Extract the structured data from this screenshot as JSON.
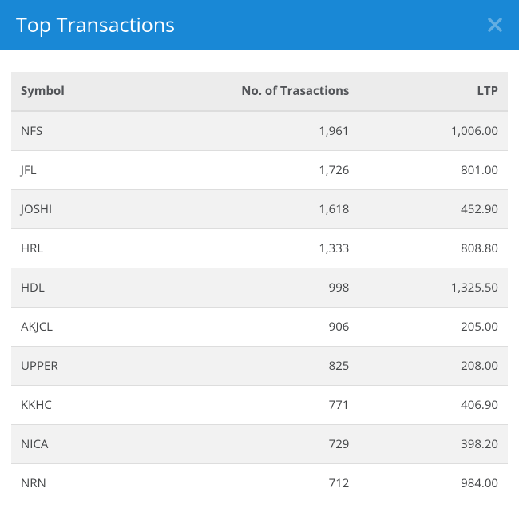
{
  "header": {
    "title": "Top Transactions"
  },
  "table": {
    "columns": [
      "Symbol",
      "No. of Trasactions",
      "LTP"
    ],
    "rows": [
      {
        "symbol": "NFS",
        "transactions": "1,961",
        "ltp": "1,006.00"
      },
      {
        "symbol": "JFL",
        "transactions": "1,726",
        "ltp": "801.00"
      },
      {
        "symbol": "JOSHI",
        "transactions": "1,618",
        "ltp": "452.90"
      },
      {
        "symbol": "HRL",
        "transactions": "1,333",
        "ltp": "808.80"
      },
      {
        "symbol": "HDL",
        "transactions": "998",
        "ltp": "1,325.50"
      },
      {
        "symbol": "AKJCL",
        "transactions": "906",
        "ltp": "205.00"
      },
      {
        "symbol": "UPPER",
        "transactions": "825",
        "ltp": "208.00"
      },
      {
        "symbol": "KKHC",
        "transactions": "771",
        "ltp": "406.90"
      },
      {
        "symbol": "NICA",
        "transactions": "729",
        "ltp": "398.20"
      },
      {
        "symbol": "NRN",
        "transactions": "712",
        "ltp": "984.00"
      }
    ]
  },
  "styling": {
    "header_bg": "#1988d6",
    "header_text": "#ffffff",
    "close_icon_color": "#63aee2",
    "thead_bg": "#ececec",
    "thead_text": "#525458",
    "row_odd_bg": "#f2f2f2",
    "row_even_bg": "#ffffff",
    "cell_text": "#444648",
    "border_color": "#dddddd",
    "font_family": "Open Sans, Segoe UI, sans-serif",
    "header_fontsize": 25,
    "cell_fontsize": 15
  }
}
